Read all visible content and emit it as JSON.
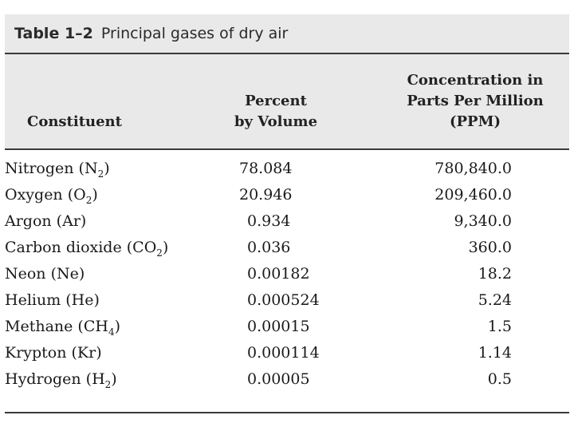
{
  "title": {
    "label": "Table 1–2",
    "text": "Principal gases of dry air"
  },
  "headers": {
    "constituent": "Constituent",
    "percent_line1": "Percent",
    "percent_line2": "by Volume",
    "ppm_line1": "Concentration in",
    "ppm_line2": "Parts Per Million",
    "ppm_line3": "(PPM)"
  },
  "rows": [
    {
      "name": "Nitrogen (N",
      "sub": "2",
      "close": ")",
      "percent": "78.084",
      "ppm": "780,840.0"
    },
    {
      "name": "Oxygen (O",
      "sub": "2",
      "close": ")",
      "percent": "20.946",
      "ppm": "209,460.0"
    },
    {
      "name": "Argon (Ar)",
      "sub": "",
      "close": "",
      "percent": "0.934",
      "ppm": "9,340.0"
    },
    {
      "name": "Carbon dioxide (CO",
      "sub": "2",
      "close": ")",
      "percent": "0.036",
      "ppm": "360.0"
    },
    {
      "name": "Neon (Ne)",
      "sub": "",
      "close": "",
      "percent": "0.00182",
      "ppm": "18.2"
    },
    {
      "name": "Helium (He)",
      "sub": "",
      "close": "",
      "percent": "0.000524",
      "ppm": "5.24"
    },
    {
      "name": "Methane (CH",
      "sub": "4",
      "close": ")",
      "percent": "0.00015",
      "ppm": "1.5"
    },
    {
      "name": "Krypton (Kr)",
      "sub": "",
      "close": "",
      "percent": "0.000114",
      "ppm": "1.14"
    },
    {
      "name": "Hydrogen (H",
      "sub": "2",
      "close": ")",
      "percent": "0.00005",
      "ppm": "0.5"
    }
  ]
}
